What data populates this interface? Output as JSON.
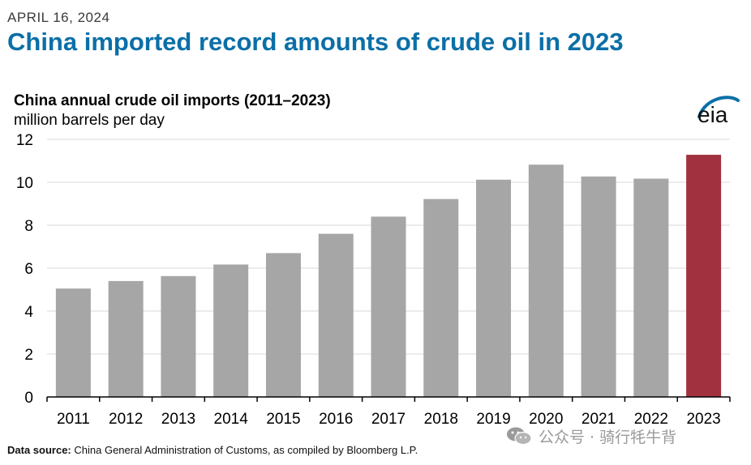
{
  "header": {
    "date": "APRIL 16, 2024",
    "headline": "China imported record amounts of crude oil in 2023"
  },
  "logo": {
    "text": "eia",
    "color": "#0b6fa7"
  },
  "footer": {
    "source_label": "Data source:",
    "source_text": "China General Administration of Customs, as compiled by Bloomberg L.P."
  },
  "watermark": {
    "text": "公众号 · 骑行牦牛背",
    "icon": "wechat-icon"
  },
  "chart_data": {
    "type": "bar",
    "title": "China annual crude oil imports (2011–2023)",
    "ylabel": "million barrels per day",
    "categories": [
      "2011",
      "2012",
      "2013",
      "2014",
      "2015",
      "2016",
      "2017",
      "2018",
      "2019",
      "2020",
      "2021",
      "2022",
      "2023"
    ],
    "values": [
      5.05,
      5.4,
      5.63,
      6.17,
      6.7,
      7.6,
      8.4,
      9.22,
      10.12,
      10.82,
      10.27,
      10.17,
      11.28
    ],
    "ylim": [
      0,
      12
    ],
    "yticks": [
      0,
      2,
      4,
      6,
      8,
      10,
      12
    ],
    "grid": true,
    "colors": {
      "default": "#a6a6a6",
      "highlight": "#a1313f",
      "highlight_category": "2023"
    }
  }
}
